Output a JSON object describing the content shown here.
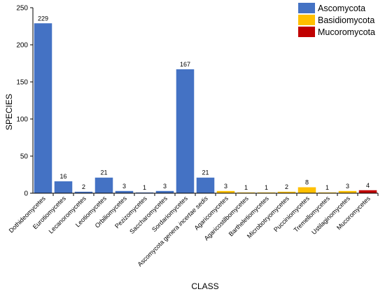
{
  "chart_data": {
    "type": "bar",
    "categories": [
      "Dothideomycetes",
      "Eurotiomycetes",
      "Lecanoromycetes",
      "Leotiomycetes",
      "Orbiliomycetes",
      "Pezizomycetes",
      "Saccharomycetes",
      "Sordariomycetes",
      "Ascomycota genera incertae sedis",
      "Agaricomycetes",
      "Agaricostilbomycetes",
      "Bartheletiomycetes",
      "Microbotryomycetes",
      "Pucciniomycetes",
      "Tremellomycetes",
      "Ustilaginomycetes",
      "Mucoromycetes"
    ],
    "values": [
      229,
      16,
      2,
      21,
      3,
      1,
      3,
      167,
      21,
      3,
      1,
      1,
      2,
      8,
      1,
      3,
      4
    ],
    "groups": [
      "Ascomycota",
      "Ascomycota",
      "Ascomycota",
      "Ascomycota",
      "Ascomycota",
      "Ascomycota",
      "Ascomycota",
      "Ascomycota",
      "Ascomycota",
      "Basidiomycota",
      "Basidiomycota",
      "Basidiomycota",
      "Basidiomycota",
      "Basidiomycota",
      "Basidiomycota",
      "Basidiomycota",
      "Mucoromycota"
    ],
    "data_labels": [
      "229",
      "16",
      "2",
      "21",
      "3",
      "1",
      "3",
      "167",
      "21",
      "3",
      "1",
      "1",
      "2",
      "8",
      "1",
      "3",
      "4"
    ],
    "legend": [
      {
        "name": "Ascomycota",
        "color": "#4472C4"
      },
      {
        "name": "Basidiomycota",
        "color": "#FFC000"
      },
      {
        "name": "Mucoromycota",
        "color": "#C00000"
      }
    ],
    "legend_position": "top-right",
    "xlabel": "CLASS",
    "ylabel": "SPECIES",
    "ylim": [
      0,
      250
    ],
    "yticks": [
      0,
      50,
      100,
      150,
      200,
      250
    ],
    "grid": false
  }
}
